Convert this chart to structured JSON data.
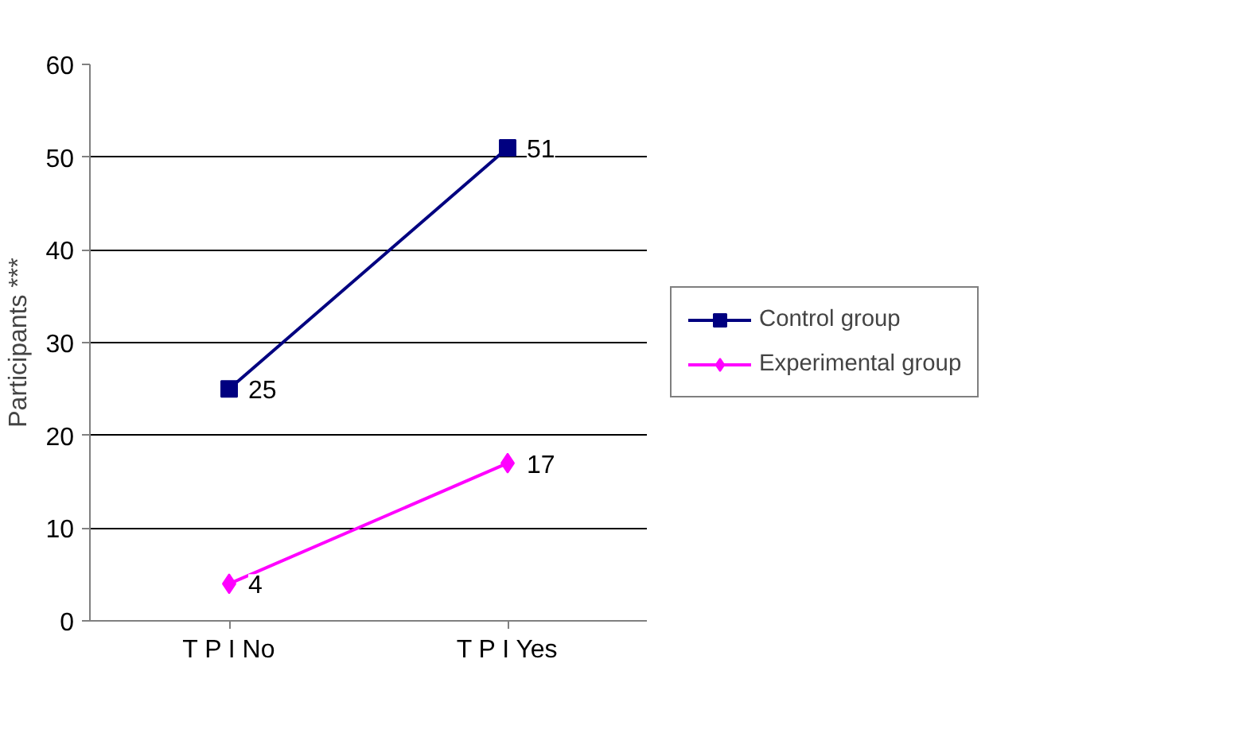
{
  "chart_data": {
    "type": "line",
    "ylabel": "Participants ***",
    "categories": [
      "T P I No",
      "T P I Yes"
    ],
    "series": [
      {
        "name": "Control group",
        "color": "#000080",
        "values": [
          25,
          51
        ],
        "marker": "square"
      },
      {
        "name": "Experimental group",
        "color": "#ff00ff",
        "values": [
          4,
          17
        ],
        "marker": "diamond"
      }
    ],
    "ylim": [
      0,
      60
    ],
    "yticks": [
      0,
      10,
      20,
      30,
      40,
      50,
      60
    ],
    "grid": "y",
    "legend": "right",
    "data_labels": true,
    "line_style": "solid"
  }
}
